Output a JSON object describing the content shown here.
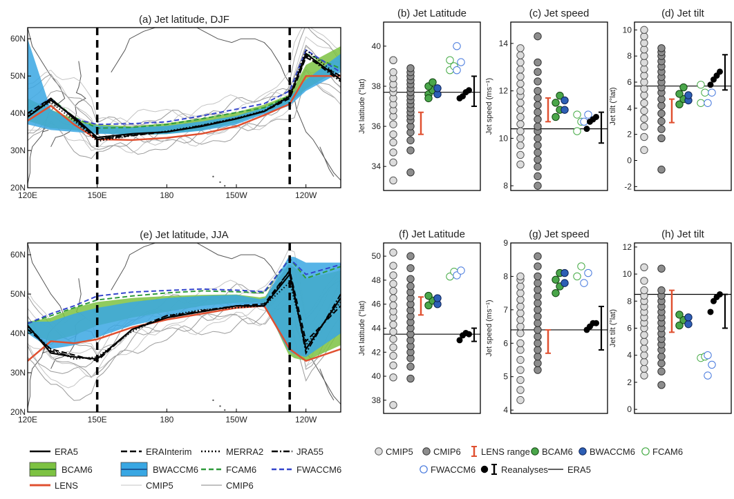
{
  "maps": [
    {
      "title": "(a) Jet latitude, DJF",
      "lat_ticks": [
        "60N",
        "50N",
        "40N",
        "30N",
        "20N"
      ],
      "lon_ticks": [
        "120E",
        "150E",
        "180",
        "150W",
        "120W"
      ],
      "lat_range": [
        20,
        63
      ],
      "lon_range": [
        120,
        255
      ],
      "boundaries": [
        150,
        233
      ],
      "bands": [
        {
          "name": "BCAM6",
          "color": "#7dc242",
          "lo": [
            38,
            36,
            35.5,
            34.8,
            34.2,
            34.4,
            35.5,
            37.5,
            40.2,
            42.8,
            46.5,
            52
          ],
          "hi": [
            44,
            41,
            38.5,
            37,
            36.5,
            37.3,
            38.7,
            40.3,
            42.3,
            45,
            53,
            58
          ]
        },
        {
          "name": "BWACCM6",
          "color": "#39a7e3",
          "lo": [
            37,
            35.5,
            35,
            34.5,
            34.2,
            34.4,
            35.3,
            37,
            39.8,
            42,
            46,
            51
          ],
          "hi": [
            60,
            41,
            37.8,
            36.6,
            36.2,
            36.6,
            37.8,
            39.3,
            41.5,
            44.3,
            49,
            56
          ]
        }
      ],
      "lon_nodes": [
        120,
        130,
        140,
        150,
        165,
        180,
        195,
        210,
        222,
        233,
        240,
        255
      ],
      "series": {
        "ERA5": [
          39,
          43.5,
          39,
          33.5,
          34.5,
          35,
          36.5,
          38.5,
          40.5,
          44.5,
          56,
          49
        ],
        "ERAInterim": [
          40,
          44,
          38.5,
          33,
          34,
          35,
          36.5,
          38.5,
          40.5,
          44,
          55,
          50
        ],
        "MERRA2": [
          39.5,
          43,
          38,
          32.5,
          34,
          35.2,
          36.8,
          38.7,
          40.7,
          44.8,
          57,
          49.5
        ],
        "JRA55": [
          39,
          44,
          38.5,
          33,
          34.3,
          35,
          36.7,
          38.6,
          40.6,
          44.6,
          55.5,
          48.5
        ],
        "FCAM6": [
          39,
          44,
          39,
          36,
          36.2,
          37,
          38.5,
          40.2,
          41.5,
          44.7,
          56,
          52
        ],
        "FWACCM6": [
          40,
          44,
          38.5,
          37,
          37.2,
          37.7,
          39.3,
          41.1,
          42.6,
          46,
          57,
          51
        ],
        "LENS": [
          38,
          42,
          37,
          33,
          32.8,
          33.4,
          34.5,
          36.5,
          39.5,
          42.5,
          50,
          50
        ]
      },
      "ensemble_offsets": [
        -4,
        -3,
        -2,
        -1.5,
        -0.5,
        0.5,
        1.5,
        2.5,
        3.5,
        5
      ]
    },
    {
      "title": "(e) Jet latitude, JJA",
      "lat_ticks": [
        "60N",
        "50N",
        "40N",
        "30N",
        "20N"
      ],
      "lon_ticks": [
        "120E",
        "150E",
        "180",
        "150W",
        "120W"
      ],
      "lat_range": [
        20,
        63
      ],
      "lon_range": [
        120,
        255
      ],
      "boundaries": [
        150,
        233
      ],
      "bands": [
        {
          "name": "BCAM6",
          "color": "#7dc242",
          "lo": [
            40,
            38,
            39.5,
            42,
            44,
            45.5,
            47,
            47.8,
            48,
            34,
            33,
            37
          ],
          "hi": [
            43,
            44,
            46.5,
            48,
            49,
            49.5,
            49.8,
            49.9,
            49,
            58,
            54,
            56
          ]
        },
        {
          "name": "BWACCM6",
          "color": "#39a7e3",
          "lo": [
            40,
            36,
            37,
            39,
            42,
            44,
            46,
            47,
            47,
            35,
            34,
            40
          ],
          "hi": [
            43,
            43,
            45,
            46.5,
            48,
            49,
            49.5,
            49.8,
            48.5,
            60,
            58,
            58
          ]
        }
      ],
      "lon_nodes": [
        120,
        130,
        140,
        150,
        165,
        180,
        195,
        210,
        222,
        233,
        240,
        255
      ],
      "series": {
        "ERA5": [
          42,
          35,
          34,
          33.5,
          41,
          44,
          45.5,
          47,
          47,
          55,
          36,
          49
        ],
        "ERAInterim": [
          41,
          36,
          34.5,
          33,
          41,
          44.5,
          45.5,
          47,
          47.5,
          56,
          38,
          47
        ],
        "MERRA2": [
          41.5,
          36,
          33.5,
          34,
          40.5,
          44.5,
          46,
          46.5,
          47,
          53,
          37,
          48
        ],
        "JRA55": [
          42,
          35.5,
          34,
          33.5,
          41,
          44,
          45.8,
          47,
          47,
          56,
          35,
          50
        ],
        "FCAM6": [
          42.5,
          44.5,
          46.5,
          48.5,
          49.5,
          50.3,
          50.8,
          50.6,
          50.3,
          59,
          54,
          57
        ],
        "FWACCM6": [
          42.5,
          45,
          47,
          49.5,
          50.5,
          50.9,
          51.3,
          51,
          50.6,
          59,
          55,
          57.5
        ],
        "LENS": [
          33,
          38,
          37.5,
          38.5,
          41.5,
          43.5,
          45,
          46.5,
          47,
          36,
          33,
          36
        ]
      },
      "ensemble_offsets": [
        -5,
        -3.5,
        -2.5,
        -1.5,
        -0.5,
        0.5,
        1.5,
        2.5,
        3.5,
        5
      ]
    }
  ],
  "panels": [
    {
      "title": "(b) Jet Latitude",
      "ylabel": "Jet latitude (°lat)",
      "yticks": [
        34,
        36,
        38,
        40
      ],
      "ylim": [
        32.8,
        41.2
      ],
      "era5": 37.7,
      "groups": {
        "CMIP5": [
          33.3,
          34.2,
          34.7,
          35.2,
          35.6,
          36.1,
          36.5,
          36.8,
          37.1,
          37.4,
          37.7,
          37.9,
          38.1,
          38.4,
          38.7,
          39.3,
          39.3
        ],
        "CMIP6": [
          33.7,
          34.8,
          35.3,
          35.7,
          36.0,
          36.3,
          36.5,
          36.7,
          36.9,
          37.1,
          37.3,
          37.5,
          37.7,
          37.9,
          38.1,
          38.3,
          38.5,
          38.7,
          38.9
        ],
        "BCAM6": [
          37.6,
          37.8,
          38.0,
          38.2,
          37.4
        ],
        "BWACCM6": [
          37.6,
          37.9
        ],
        "FCAM6": [
          38.8,
          39.0,
          39.3
        ],
        "FWACCM6": [
          38.8,
          39.2,
          40.0
        ],
        "Reanalyses": [
          37.4,
          37.5,
          37.7,
          37.8
        ]
      },
      "lens_range": [
        35.6,
        36.7
      ],
      "rean_range": [
        37.0,
        38.5
      ]
    },
    {
      "title": "(c) Jet speed",
      "ylabel": "Jet speed (ms⁻¹)",
      "yticks": [
        8,
        10,
        12,
        14
      ],
      "ylim": [
        7.8,
        14.9
      ],
      "era5": 10.4,
      "groups": {
        "CMIP5": [
          8.9,
          9.3,
          9.7,
          10.0,
          10.3,
          10.6,
          10.9,
          11.2,
          11.5,
          11.8,
          12.0,
          12.3,
          12.6,
          12.9,
          13.2,
          13.5,
          13.8
        ],
        "CMIP6": [
          8.0,
          8.4,
          8.8,
          9.1,
          9.4,
          9.7,
          10.0,
          10.3,
          10.5,
          10.8,
          11.1,
          11.4,
          11.7,
          12.0,
          12.4,
          12.8,
          13.2,
          14.3
        ],
        "BCAM6": [
          10.9,
          11.2,
          11.5,
          11.8
        ],
        "BWACCM6": [
          11.2,
          11.6
        ],
        "FCAM6": [
          10.3,
          10.7,
          11.0
        ],
        "FWACCM6": [
          10.7,
          11.0
        ],
        "Reanalyses": [
          10.4,
          10.7,
          10.8,
          10.9
        ]
      },
      "lens_range": [
        10.7,
        11.7
      ],
      "rean_range": [
        9.8,
        11.1
      ]
    },
    {
      "title": "(d) Jet tilt",
      "ylabel": "Jet tilt (°lat)",
      "yticks": [
        -2,
        0,
        2,
        4,
        6,
        8,
        10
      ],
      "ylim": [
        -2.3,
        10.6
      ],
      "era5": 5.7,
      "groups": {
        "CMIP5": [
          0.8,
          1.8,
          2.6,
          3.2,
          3.8,
          4.4,
          5.0,
          5.5,
          6.0,
          6.5,
          7.0,
          7.5,
          8.0,
          8.5,
          9.0,
          9.5,
          10.0
        ],
        "CMIP6": [
          -0.7,
          1.7,
          2.4,
          3.0,
          3.6,
          4.2,
          4.7,
          5.2,
          5.6,
          6.0,
          6.4,
          6.8,
          7.2,
          7.6,
          8.0,
          8.3,
          8.6
        ],
        "BCAM6": [
          4.3,
          4.7,
          5.1,
          5.6
        ],
        "BWACCM6": [
          4.6,
          5.0
        ],
        "FCAM6": [
          4.4,
          5.2,
          5.8
        ],
        "FWACCM6": [
          4.4,
          5.2
        ],
        "Reanalyses": [
          5.8,
          6.2,
          6.5,
          6.8
        ]
      },
      "lens_range": [
        2.9,
        4.7
      ],
      "rean_range": [
        5.4,
        8.1
      ]
    },
    {
      "title": "(f) Jet Latitude",
      "ylabel": "Jet latitude (°lat)",
      "yticks": [
        38,
        40,
        42,
        44,
        46,
        48,
        50
      ],
      "ylim": [
        36.9,
        51.1
      ],
      "era5": 43.5,
      "groups": {
        "CMIP5": [
          37.6,
          39.9,
          40.9,
          41.7,
          42.4,
          43.1,
          43.7,
          44.3,
          44.9,
          45.4,
          45.9,
          46.5,
          47.1,
          47.7,
          48.4,
          49.2,
          50.3
        ],
        "CMIP6": [
          39.8,
          40.8,
          41.5,
          42.0,
          42.5,
          43.0,
          43.5,
          44.0,
          44.5,
          45.0,
          45.5,
          46.0,
          46.5,
          47.0,
          47.5,
          48.1,
          49.0,
          50.0
        ],
        "BCAM6": [
          45.9,
          46.3,
          46.7
        ],
        "BWACCM6": [
          46.0,
          46.5
        ],
        "FCAM6": [
          48.3,
          48.7
        ],
        "FWACCM6": [
          48.4,
          48.8
        ],
        "Reanalyses": [
          43.0,
          43.4,
          43.6,
          43.5
        ]
      },
      "lens_range": [
        45.1,
        46.6
      ],
      "rean_range": [
        42.9,
        44.0
      ]
    },
    {
      "title": "(g) Jet speed",
      "ylabel": "Jet speed (ms⁻¹)",
      "yticks": [
        4,
        5,
        6,
        7,
        8,
        9
      ],
      "ylim": [
        3.9,
        9.0
      ],
      "era5": 6.4,
      "groups": {
        "CMIP5": [
          4.3,
          4.6,
          4.9,
          5.2,
          5.5,
          5.8,
          6.0,
          6.3,
          6.5,
          6.7,
          6.9,
          7.1,
          7.3,
          7.5,
          7.7,
          7.9,
          8.0
        ],
        "CMIP6": [
          5.2,
          5.4,
          5.6,
          5.8,
          6.0,
          6.2,
          6.4,
          6.6,
          6.8,
          7.0,
          7.2,
          7.4,
          7.6,
          7.8,
          8.0,
          8.3,
          8.6
        ],
        "BCAM6": [
          7.5,
          7.7,
          7.9,
          8.1
        ],
        "BWACCM6": [
          7.8,
          8.1
        ],
        "FCAM6": [
          8.0,
          8.3
        ],
        "FWACCM6": [
          7.8,
          8.1
        ],
        "Reanalyses": [
          6.4,
          6.5,
          6.6,
          6.6
        ]
      },
      "lens_range": [
        5.7,
        6.4
      ],
      "rean_range": [
        5.8,
        7.1
      ]
    },
    {
      "title": "(h) Jet tilt",
      "ylabel": "Jet tilt (°lat)",
      "yticks": [
        0,
        2,
        4,
        6,
        8,
        10,
        12
      ],
      "ylim": [
        -0.3,
        12.3
      ],
      "era5": 8.5,
      "groups": {
        "CMIP5": [
          2.5,
          3.0,
          3.5,
          4.0,
          4.5,
          5.0,
          5.5,
          6.0,
          6.4,
          6.8,
          7.2,
          7.6,
          8.0,
          8.4,
          8.8,
          9.5,
          10.5
        ],
        "CMIP6": [
          1.8,
          2.8,
          3.4,
          3.9,
          4.4,
          4.8,
          5.2,
          5.6,
          6.0,
          6.4,
          6.8,
          7.2,
          7.6,
          8.0,
          8.4,
          8.8,
          10.4
        ],
        "BCAM6": [
          6.2,
          6.6,
          7.0
        ],
        "BWACCM6": [
          6.3,
          6.8
        ],
        "FCAM6": [
          3.8,
          3.9
        ],
        "FWACCM6": [
          2.5,
          3.3,
          4.0
        ],
        "Reanalyses": [
          7.2,
          8.0,
          8.3,
          8.5
        ]
      },
      "lens_range": [
        5.7,
        8.8
      ],
      "rean_range": [
        6.0,
        8.5
      ]
    }
  ],
  "colors": {
    "CMIP5": "#d6d6d6",
    "CMIP6": "#8c8c8c",
    "BCAM6": "#3f9a3f",
    "BWACCM6": "#2457a8",
    "FCAM6": "#44aa44",
    "FWACCM6": "#4477dd",
    "LENS": "#e05030",
    "ERA5": "#000000",
    "ensemble": "#b8b8b8"
  },
  "map_legend": [
    {
      "label": "ERA5",
      "kind": "solid"
    },
    {
      "label": "ERAInterim",
      "kind": "dashed"
    },
    {
      "label": "MERRA2",
      "kind": "dotted"
    },
    {
      "label": "JRA55",
      "kind": "dashdot"
    },
    {
      "label": "BCAM6",
      "kind": "band-green"
    },
    {
      "label": "BWACCM6",
      "kind": "band-blue"
    },
    {
      "label": "FCAM6",
      "kind": "dash-green"
    },
    {
      "label": "FWACCM6",
      "kind": "dash-blue"
    },
    {
      "label": "LENS",
      "kind": "red"
    },
    {
      "label": "CMIP5",
      "kind": "thin-light"
    },
    {
      "label": "CMIP6",
      "kind": "thin-mid"
    }
  ],
  "scatter_legend": [
    {
      "label": "CMIP5",
      "kind": "open-gray"
    },
    {
      "label": "CMIP6",
      "kind": "filled-gray"
    },
    {
      "label": "LENS range",
      "kind": "range-red"
    },
    {
      "label": "BCAM6",
      "kind": "filled-green"
    },
    {
      "label": "BWACCM6",
      "kind": "filled-blue"
    },
    {
      "label": "FCAM6",
      "kind": "open-green"
    },
    {
      "label": "FWACCM6",
      "kind": "open-blue"
    },
    {
      "label": "Reanalyses",
      "kind": "filled-black-range"
    },
    {
      "label": "ERA5",
      "kind": "line-black"
    }
  ]
}
